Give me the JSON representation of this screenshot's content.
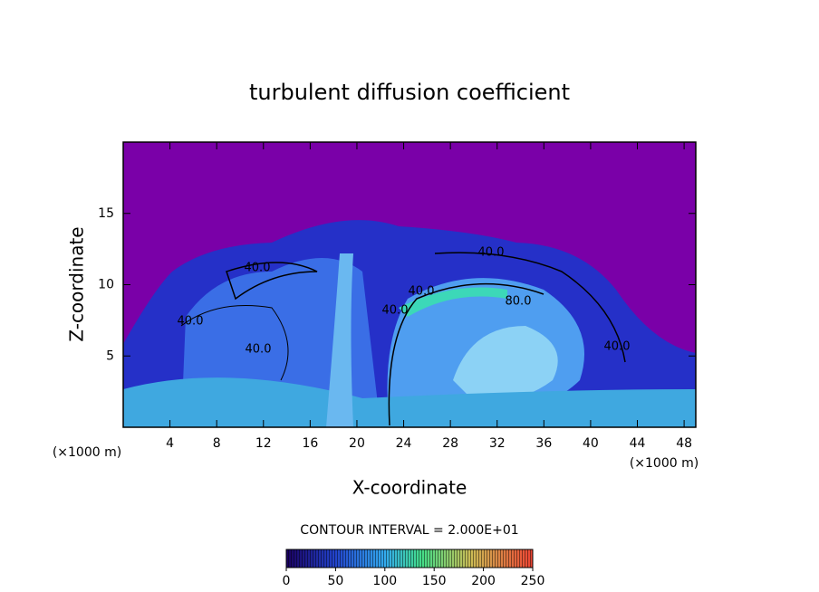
{
  "chart_data": {
    "type": "contour",
    "title": "turbulent diffusion coefficient",
    "xlabel": "X-coordinate",
    "ylabel": "Z-coordinate",
    "x_unit": "(×1000 m)",
    "y_unit": "(×1000 m)",
    "xlim": [
      0,
      49
    ],
    "xticks": [
      4,
      8,
      12,
      16,
      20,
      24,
      28,
      32,
      36,
      40,
      44,
      48
    ],
    "ylim": [
      0,
      20
    ],
    "yticks": [
      5,
      10,
      15
    ],
    "contour_interval": "CONTOUR INTERVAL = 2.000E+01",
    "contour_labels": [
      "40.0",
      "40.0",
      "40.0",
      "40.0",
      "40.0",
      "80.0",
      "40.0",
      "40.0"
    ],
    "colorbar": {
      "lim": [
        0,
        250
      ],
      "ticks": [
        0,
        50,
        100,
        150,
        200,
        250
      ]
    }
  }
}
